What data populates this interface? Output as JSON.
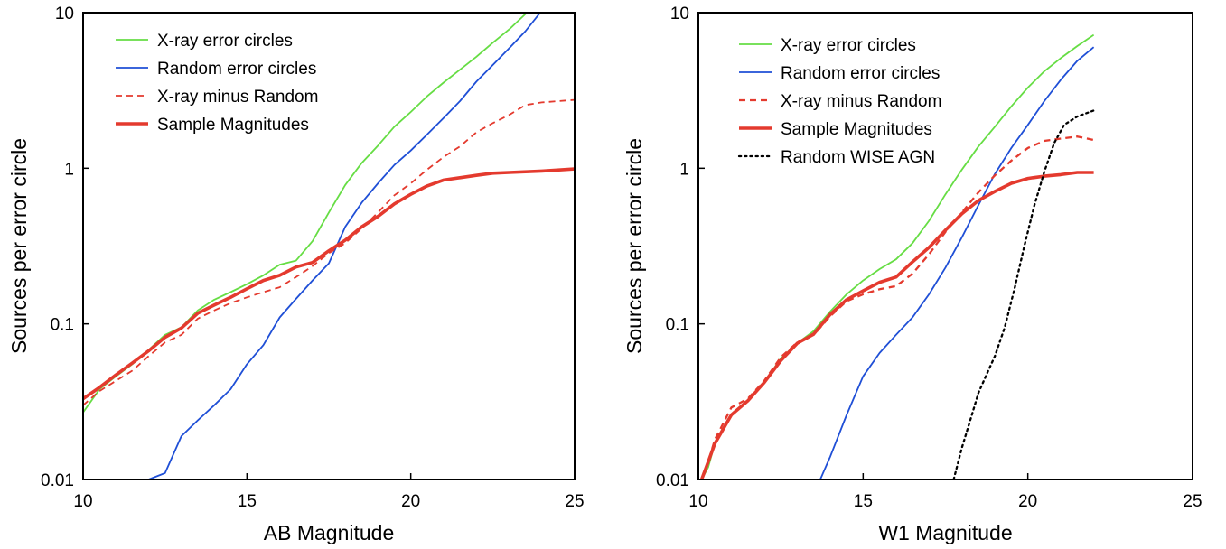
{
  "chart_data": [
    {
      "type": "line",
      "title": "",
      "xlabel": "AB Magnitude",
      "ylabel": "Sources per error circle",
      "xlim": [
        10,
        25
      ],
      "ylim": [
        0.01,
        10
      ],
      "yscale": "log",
      "xticks": [
        10,
        15,
        20,
        25
      ],
      "yticks": [
        0.01,
        0.1,
        1,
        10
      ],
      "ytick_labels": [
        "0.01",
        "0.1",
        "1",
        "10"
      ],
      "grid": false,
      "legend_position": "top-left",
      "series": [
        {
          "name": "X-ray error circles",
          "color": "#66dd44",
          "style": "solid",
          "width": "thin",
          "points": [
            [
              10,
              0.027
            ],
            [
              10.5,
              0.038
            ],
            [
              11,
              0.046
            ],
            [
              11.5,
              0.055
            ],
            [
              12,
              0.068
            ],
            [
              12.5,
              0.085
            ],
            [
              13,
              0.095
            ],
            [
              13.5,
              0.122
            ],
            [
              14,
              0.143
            ],
            [
              14.5,
              0.16
            ],
            [
              15,
              0.18
            ],
            [
              15.5,
              0.205
            ],
            [
              16,
              0.24
            ],
            [
              16.5,
              0.255
            ],
            [
              17,
              0.34
            ],
            [
              17.5,
              0.52
            ],
            [
              18,
              0.78
            ],
            [
              18.5,
              1.08
            ],
            [
              19,
              1.4
            ],
            [
              19.5,
              1.85
            ],
            [
              20,
              2.3
            ],
            [
              20.5,
              2.9
            ],
            [
              21,
              3.55
            ],
            [
              21.5,
              4.3
            ],
            [
              22,
              5.2
            ],
            [
              22.5,
              6.4
            ],
            [
              23,
              7.8
            ],
            [
              23.5,
              9.8
            ],
            [
              23.65,
              10.5
            ]
          ]
        },
        {
          "name": "Random error circles",
          "color": "#1f4fd6",
          "style": "solid",
          "width": "thin",
          "points": [
            [
              11.5,
              0.01
            ],
            [
              12,
              0.01
            ],
            [
              12.5,
              0.011
            ],
            [
              13,
              0.019
            ],
            [
              13.5,
              0.024
            ],
            [
              14,
              0.03
            ],
            [
              14.5,
              0.038
            ],
            [
              15,
              0.055
            ],
            [
              15.5,
              0.073
            ],
            [
              16,
              0.11
            ],
            [
              16.5,
              0.145
            ],
            [
              17,
              0.19
            ],
            [
              17.5,
              0.245
            ],
            [
              18,
              0.42
            ],
            [
              18.5,
              0.6
            ],
            [
              19,
              0.8
            ],
            [
              19.5,
              1.05
            ],
            [
              20,
              1.3
            ],
            [
              20.5,
              1.65
            ],
            [
              21,
              2.1
            ],
            [
              21.5,
              2.7
            ],
            [
              22,
              3.6
            ],
            [
              22.5,
              4.6
            ],
            [
              23,
              5.9
            ],
            [
              23.5,
              7.6
            ],
            [
              24,
              10.3
            ]
          ]
        },
        {
          "name": "X-ray minus Random",
          "color": "#e43a2e",
          "style": "dashed",
          "width": "thin",
          "points": [
            [
              10,
              0.03
            ],
            [
              10.5,
              0.037
            ],
            [
              11,
              0.043
            ],
            [
              11.5,
              0.05
            ],
            [
              12,
              0.062
            ],
            [
              12.5,
              0.076
            ],
            [
              13,
              0.085
            ],
            [
              13.5,
              0.108
            ],
            [
              14,
              0.122
            ],
            [
              14.5,
              0.136
            ],
            [
              15,
              0.148
            ],
            [
              15.5,
              0.16
            ],
            [
              16,
              0.172
            ],
            [
              16.5,
              0.2
            ],
            [
              17,
              0.235
            ],
            [
              17.5,
              0.285
            ],
            [
              18,
              0.33
            ],
            [
              18.5,
              0.41
            ],
            [
              19,
              0.52
            ],
            [
              19.5,
              0.67
            ],
            [
              20,
              0.8
            ],
            [
              20.5,
              0.98
            ],
            [
              21,
              1.18
            ],
            [
              21.5,
              1.38
            ],
            [
              22,
              1.7
            ],
            [
              22.5,
              1.95
            ],
            [
              23,
              2.2
            ],
            [
              23.5,
              2.55
            ],
            [
              24,
              2.65
            ],
            [
              25,
              2.75
            ]
          ]
        },
        {
          "name": "Sample Magnitudes",
          "color": "#e43a2e",
          "style": "solid",
          "width": "thick",
          "points": [
            [
              10,
              0.033
            ],
            [
              10.5,
              0.039
            ],
            [
              11,
              0.047
            ],
            [
              11.5,
              0.056
            ],
            [
              12,
              0.067
            ],
            [
              12.5,
              0.082
            ],
            [
              13,
              0.094
            ],
            [
              13.5,
              0.117
            ],
            [
              14,
              0.132
            ],
            [
              14.5,
              0.148
            ],
            [
              15,
              0.168
            ],
            [
              15.5,
              0.19
            ],
            [
              16,
              0.205
            ],
            [
              16.5,
              0.232
            ],
            [
              17,
              0.248
            ],
            [
              17.5,
              0.295
            ],
            [
              18,
              0.345
            ],
            [
              18.5,
              0.42
            ],
            [
              19,
              0.49
            ],
            [
              19.5,
              0.59
            ],
            [
              20,
              0.68
            ],
            [
              20.5,
              0.77
            ],
            [
              21,
              0.84
            ],
            [
              21.5,
              0.87
            ],
            [
              22,
              0.9
            ],
            [
              22.5,
              0.93
            ],
            [
              23,
              0.94
            ],
            [
              24,
              0.96
            ],
            [
              25,
              0.99
            ]
          ]
        }
      ]
    },
    {
      "type": "line",
      "title": "",
      "xlabel": "W1 Magnitude",
      "ylabel": "Sources per error circle",
      "xlim": [
        10,
        25
      ],
      "ylim": [
        0.01,
        10
      ],
      "yscale": "log",
      "xticks": [
        10,
        15,
        20,
        25
      ],
      "yticks": [
        0.01,
        0.1,
        1,
        10
      ],
      "ytick_labels": [
        "0.01",
        "0.1",
        "1",
        "10"
      ],
      "grid": false,
      "legend_position": "top-left",
      "series": [
        {
          "name": "X-ray error circles",
          "color": "#66dd44",
          "style": "solid",
          "width": "thin",
          "points": [
            [
              10.1,
              0.009
            ],
            [
              10.3,
              0.012
            ],
            [
              10.5,
              0.017
            ],
            [
              11,
              0.026
            ],
            [
              11.5,
              0.032
            ],
            [
              12,
              0.042
            ],
            [
              12.5,
              0.06
            ],
            [
              13,
              0.075
            ],
            [
              13.5,
              0.09
            ],
            [
              14,
              0.12
            ],
            [
              14.5,
              0.155
            ],
            [
              15,
              0.19
            ],
            [
              15.5,
              0.225
            ],
            [
              16,
              0.26
            ],
            [
              16.5,
              0.33
            ],
            [
              17,
              0.46
            ],
            [
              17.5,
              0.68
            ],
            [
              18,
              0.98
            ],
            [
              18.5,
              1.38
            ],
            [
              19,
              1.85
            ],
            [
              19.5,
              2.5
            ],
            [
              20,
              3.3
            ],
            [
              20.5,
              4.2
            ],
            [
              21,
              5.1
            ],
            [
              21.5,
              6.1
            ],
            [
              22,
              7.2
            ]
          ]
        },
        {
          "name": "Random error circles",
          "color": "#1f4fd6",
          "style": "solid",
          "width": "thin",
          "points": [
            [
              13.7,
              0.01
            ],
            [
              14,
              0.014
            ],
            [
              14.5,
              0.026
            ],
            [
              15,
              0.046
            ],
            [
              15.5,
              0.065
            ],
            [
              16,
              0.085
            ],
            [
              16.5,
              0.11
            ],
            [
              17,
              0.155
            ],
            [
              17.5,
              0.23
            ],
            [
              18,
              0.36
            ],
            [
              18.5,
              0.58
            ],
            [
              19,
              0.92
            ],
            [
              19.5,
              1.35
            ],
            [
              20,
              1.9
            ],
            [
              20.5,
              2.7
            ],
            [
              21,
              3.7
            ],
            [
              21.5,
              4.9
            ],
            [
              22,
              6.0
            ]
          ]
        },
        {
          "name": "X-ray minus Random",
          "color": "#e43a2e",
          "style": "dashed",
          "width": "medium",
          "points": [
            [
              10.1,
              0.01
            ],
            [
              10.3,
              0.013
            ],
            [
              10.5,
              0.018
            ],
            [
              11,
              0.029
            ],
            [
              11.5,
              0.033
            ],
            [
              12,
              0.043
            ],
            [
              12.5,
              0.061
            ],
            [
              13,
              0.076
            ],
            [
              13.5,
              0.085
            ],
            [
              14,
              0.112
            ],
            [
              14.5,
              0.14
            ],
            [
              15,
              0.155
            ],
            [
              15.5,
              0.167
            ],
            [
              16,
              0.175
            ],
            [
              16.5,
              0.21
            ],
            [
              17,
              0.28
            ],
            [
              17.5,
              0.39
            ],
            [
              18,
              0.52
            ],
            [
              18.5,
              0.7
            ],
            [
              19,
              0.9
            ],
            [
              19.5,
              1.12
            ],
            [
              20,
              1.35
            ],
            [
              20.5,
              1.5
            ],
            [
              21,
              1.55
            ],
            [
              21.5,
              1.6
            ],
            [
              22,
              1.52
            ]
          ]
        },
        {
          "name": "Sample Magnitudes",
          "color": "#e43a2e",
          "style": "solid",
          "width": "thick",
          "points": [
            [
              10.1,
              0.009
            ],
            [
              10.3,
              0.013
            ],
            [
              10.5,
              0.017
            ],
            [
              11,
              0.026
            ],
            [
              11.5,
              0.032
            ],
            [
              12,
              0.042
            ],
            [
              12.5,
              0.058
            ],
            [
              13,
              0.075
            ],
            [
              13.5,
              0.086
            ],
            [
              14,
              0.115
            ],
            [
              14.5,
              0.143
            ],
            [
              15,
              0.163
            ],
            [
              15.5,
              0.185
            ],
            [
              16,
              0.2
            ],
            [
              16.5,
              0.25
            ],
            [
              17,
              0.31
            ],
            [
              17.5,
              0.4
            ],
            [
              18,
              0.51
            ],
            [
              18.5,
              0.62
            ],
            [
              19,
              0.71
            ],
            [
              19.5,
              0.8
            ],
            [
              20,
              0.86
            ],
            [
              20.5,
              0.89
            ],
            [
              21,
              0.91
            ],
            [
              21.5,
              0.94
            ],
            [
              22,
              0.94
            ]
          ]
        },
        {
          "name": "Random WISE AGN",
          "color": "#000000",
          "style": "dotted",
          "width": "medium",
          "points": [
            [
              17.75,
              0.01
            ],
            [
              18,
              0.016
            ],
            [
              18.3,
              0.026
            ],
            [
              18.5,
              0.036
            ],
            [
              18.8,
              0.05
            ],
            [
              19,
              0.062
            ],
            [
              19.3,
              0.095
            ],
            [
              19.6,
              0.17
            ],
            [
              19.9,
              0.32
            ],
            [
              20.2,
              0.58
            ],
            [
              20.5,
              0.95
            ],
            [
              20.8,
              1.45
            ],
            [
              21.1,
              1.9
            ],
            [
              21.5,
              2.15
            ],
            [
              22,
              2.35
            ]
          ]
        }
      ]
    }
  ]
}
